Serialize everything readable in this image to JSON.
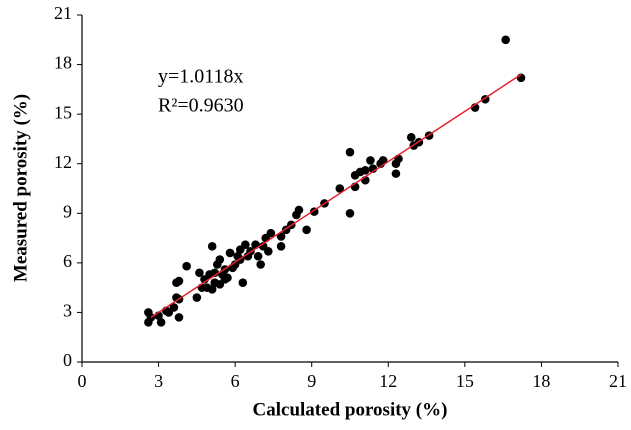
{
  "chart_data": {
    "type": "scatter",
    "x_label": "Calculated porosity (%)",
    "y_label": "Measured porosity (%)",
    "annotations": [
      "y=1.0118x",
      "R²=0.9630"
    ],
    "xlim": [
      0,
      21
    ],
    "xticks": [
      0,
      3,
      6,
      9,
      12,
      15,
      18,
      21
    ],
    "ylim": [
      0,
      21
    ],
    "yticks": [
      0,
      3,
      6,
      9,
      12,
      15,
      18,
      21
    ],
    "grid": false,
    "series": [
      {
        "color": "#000000",
        "x": [
          2.6,
          2.7,
          2.6,
          3.0,
          3.1,
          3.3,
          3.4,
          3.6,
          3.7,
          3.8,
          3.8,
          3.7,
          3.8,
          4.1,
          4.5,
          4.6,
          4.7,
          4.8,
          4.9,
          5.0,
          5.1,
          5.1,
          5.2,
          5.2,
          5.3,
          5.4,
          5.4,
          5.5,
          5.6,
          5.6,
          5.7,
          5.8,
          5.9,
          6.0,
          6.1,
          6.2,
          6.2,
          6.3,
          6.4,
          6.5,
          6.6,
          6.8,
          6.9,
          7.0,
          7.1,
          7.2,
          7.3,
          7.4,
          7.8,
          7.8,
          8.0,
          8.2,
          8.4,
          8.5,
          8.8,
          9.1,
          9.5,
          10.1,
          10.5,
          10.5,
          10.7,
          10.7,
          10.9,
          11.1,
          11.1,
          11.3,
          11.4,
          11.7,
          11.8,
          12.3,
          12.3,
          12.4,
          12.9,
          13.0,
          13.2,
          13.6,
          15.4,
          15.8,
          16.6,
          17.2
        ],
        "y": [
          2.4,
          2.7,
          3.0,
          2.8,
          2.4,
          3.1,
          3.0,
          3.3,
          3.9,
          3.8,
          2.7,
          4.8,
          4.9,
          5.8,
          3.9,
          5.4,
          4.5,
          5.0,
          4.5,
          5.3,
          7.0,
          4.4,
          4.8,
          5.4,
          5.9,
          4.7,
          6.2,
          5.3,
          5.6,
          5.0,
          5.1,
          6.6,
          5.7,
          5.9,
          6.4,
          6.2,
          6.8,
          4.8,
          7.1,
          6.4,
          6.7,
          7.1,
          6.4,
          5.9,
          7.0,
          7.5,
          6.7,
          7.8,
          7.6,
          7.0,
          8.0,
          8.3,
          8.9,
          9.2,
          8.0,
          9.1,
          9.6,
          10.5,
          12.7,
          9.0,
          10.6,
          11.3,
          11.5,
          11.0,
          11.6,
          12.2,
          11.7,
          12.0,
          12.2,
          12.0,
          11.4,
          12.3,
          13.6,
          13.1,
          13.3,
          13.7,
          15.4,
          15.9,
          19.5,
          17.2
        ]
      }
    ],
    "fit_line": {
      "color": "#e8202a",
      "x": [
        2.7,
        17.2
      ],
      "y": [
        2.7,
        17.4
      ]
    }
  }
}
